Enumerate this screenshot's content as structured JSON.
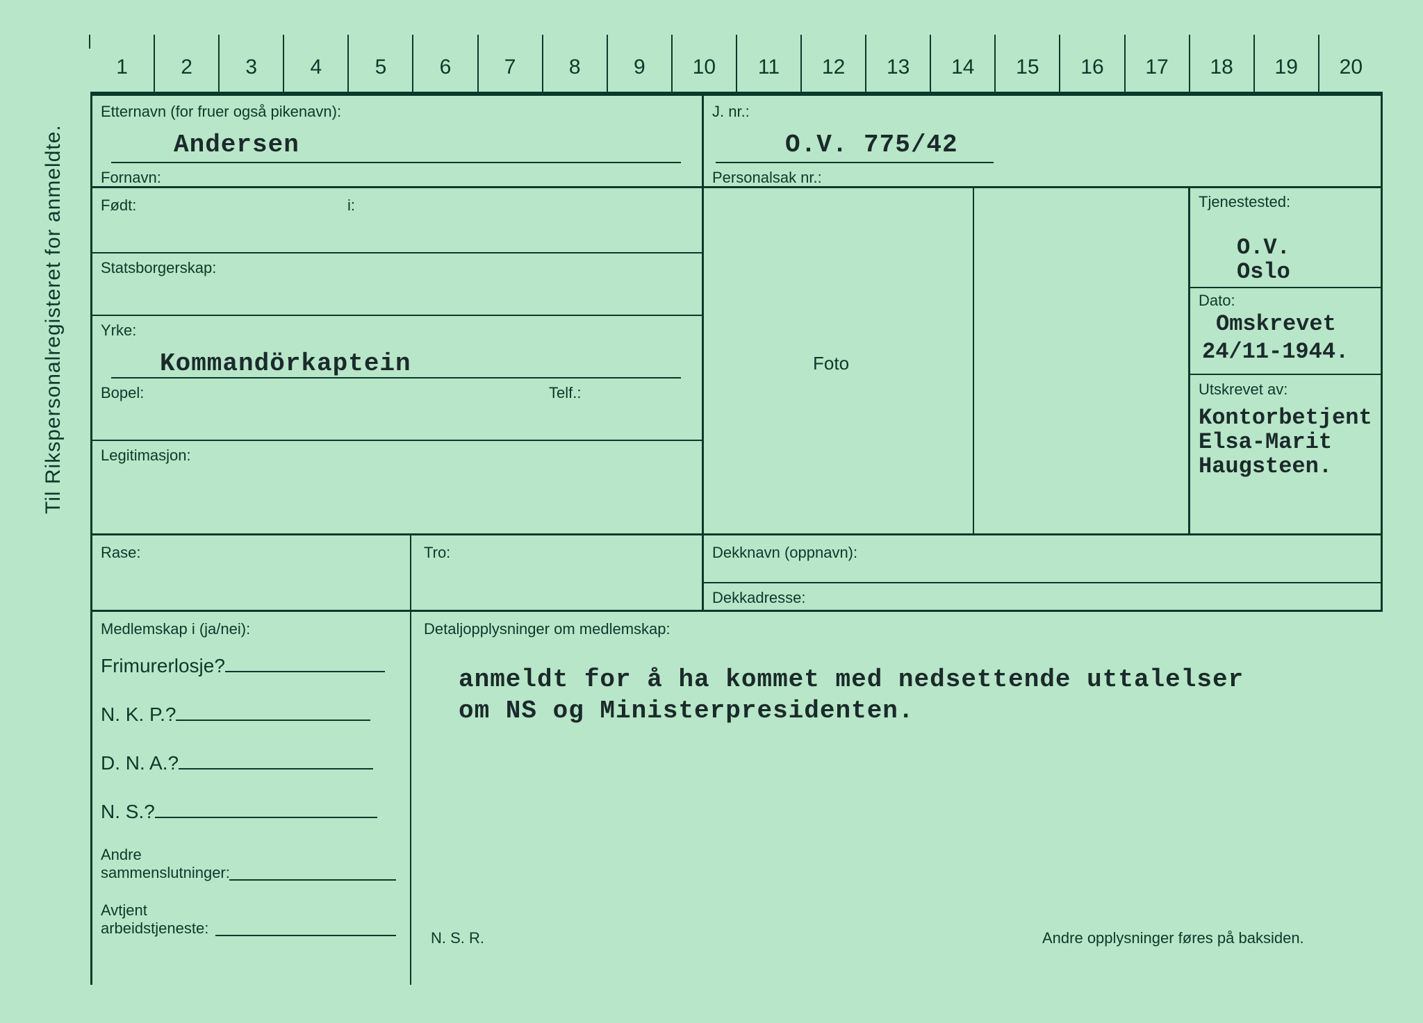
{
  "colors": {
    "background": "#b8e6c8",
    "line": "#0a3a2a",
    "label_text": "#0a3a2a",
    "value_text": "#1a2a2a"
  },
  "typography": {
    "label_font": "Arial",
    "label_size_pt": 16,
    "value_font": "Courier New",
    "value_size_pt": 27,
    "value_weight": "bold"
  },
  "vertical_title": "Til Rikspersonalregisteret for anmeldte.",
  "ruler": {
    "start": 1,
    "end": 20
  },
  "labels": {
    "etternavn": "Etternavn (for fruer også pikenavn):",
    "fornavn": "Fornavn:",
    "jnr": "J. nr.:",
    "personalsak": "Personalsak nr.:",
    "fodt": "Født:",
    "i": "i:",
    "statsborgerskap": "Statsborgerskap:",
    "yrke": "Yrke:",
    "bopel": "Bopel:",
    "telf": "Telf.:",
    "legitimasjon": "Legitimasjon:",
    "rase": "Rase:",
    "tro": "Tro:",
    "foto": "Foto",
    "tjenestested": "Tjenestested:",
    "dato": "Dato:",
    "utskrevet_av": "Utskrevet av:",
    "dekknavn": "Dekknavn (oppnavn):",
    "dekkadresse": "Dekkadresse:",
    "medlemskap": "Medlemskap i (ja/nei):",
    "detalj": "Detaljopplysninger om medlemskap:",
    "frimurer": "Frimurerlosje?",
    "nkp": "N. K. P.?",
    "dna": "D. N. A.?",
    "ns": "N. S.?",
    "andre_samm": "Andre\nsammenslutninger:",
    "avtjent": "Avtjent\narbeidstjeneste:",
    "nsr": "N. S. R.",
    "baksiden": "Andre opplysninger føres på baksiden."
  },
  "values": {
    "etternavn": "Andersen",
    "jnr": "O.V. 775/42",
    "yrke": "Kommandörkaptein",
    "tjenestested_1": "O.V.",
    "tjenestested_2": "Oslo",
    "dato_1": "Omskrevet",
    "dato_2": "24/11-1944.",
    "utskrevet_1": "Kontorbetjent",
    "utskrevet_2": "Elsa-Marit",
    "utskrevet_3": "Haugsteen.",
    "detalj_1": "anmeldt for å ha kommet med nedsettende uttalelser",
    "detalj_2": "om NS og Ministerpresidenten."
  }
}
